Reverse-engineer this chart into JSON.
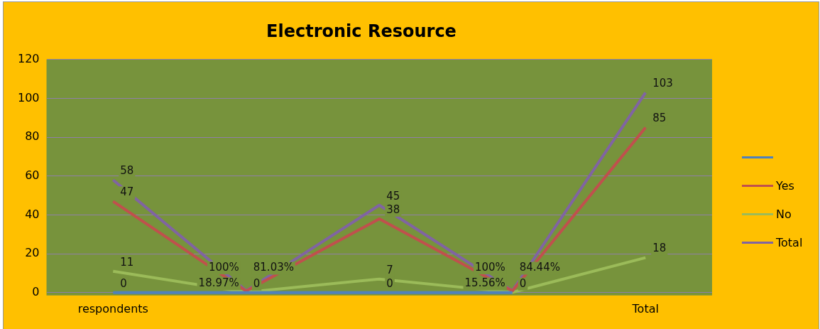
{
  "chart_data": {
    "type": "line",
    "title": "Electronic Resource",
    "categories": [
      "respondents",
      null,
      null,
      null,
      "Total"
    ],
    "series": [
      {
        "color": "#4f81bd",
        "values": [
          0,
          0,
          0,
          0,
          null
        ],
        "value_labels": [
          "0",
          "0",
          "0",
          "0",
          null
        ]
      },
      {
        "name": "Yes",
        "color": "#c0504d",
        "values": [
          47,
          0.8103,
          38,
          0.8444,
          85
        ],
        "value_labels": [
          "47",
          "81.03%",
          "38",
          "84.44%",
          "85"
        ]
      },
      {
        "name": "No",
        "color": "#9bbb59",
        "values": [
          11,
          0.1897,
          7,
          0.1556,
          18
        ],
        "value_labels": [
          "11",
          "18.97%",
          "7",
          "15.56%",
          "18"
        ]
      },
      {
        "name": "Total",
        "color": "#8064a2",
        "values": [
          58,
          1,
          45,
          1,
          103
        ],
        "value_labels": [
          "58",
          "100%",
          "45",
          "100%",
          "103"
        ]
      }
    ],
    "ylim": [
      0,
      120
    ],
    "yticks": [
      0,
      20,
      40,
      60,
      80,
      100,
      120
    ],
    "grid": "y",
    "legend": "right",
    "marker": "none",
    "line_style": "solid"
  }
}
